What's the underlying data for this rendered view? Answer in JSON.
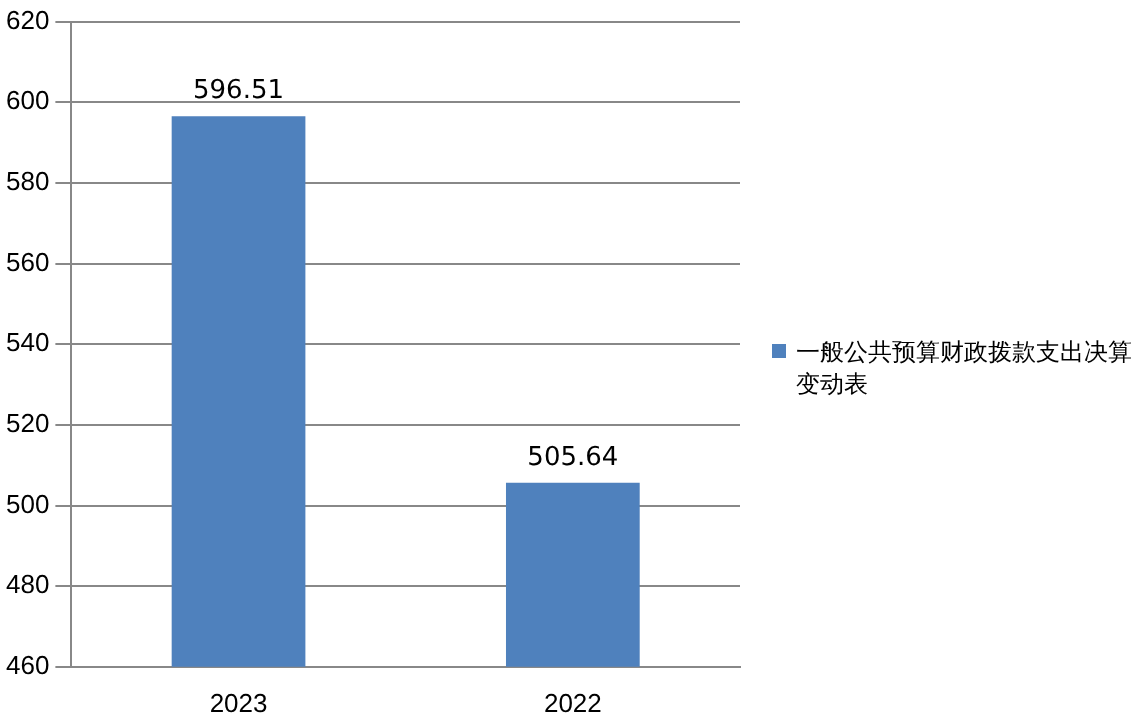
{
  "chart_data": {
    "type": "bar",
    "categories": [
      "2023",
      "2022"
    ],
    "series": [
      {
        "name": "一般公共预算财政拨款支出决算变动表",
        "color": "#4f81bd",
        "values": [
          596.51,
          505.64
        ]
      }
    ],
    "ylim": [
      460,
      620
    ],
    "yticks": [
      460,
      480,
      500,
      520,
      540,
      560,
      580,
      600,
      620
    ],
    "grid": "y",
    "legend": "right",
    "data_labels": true
  }
}
